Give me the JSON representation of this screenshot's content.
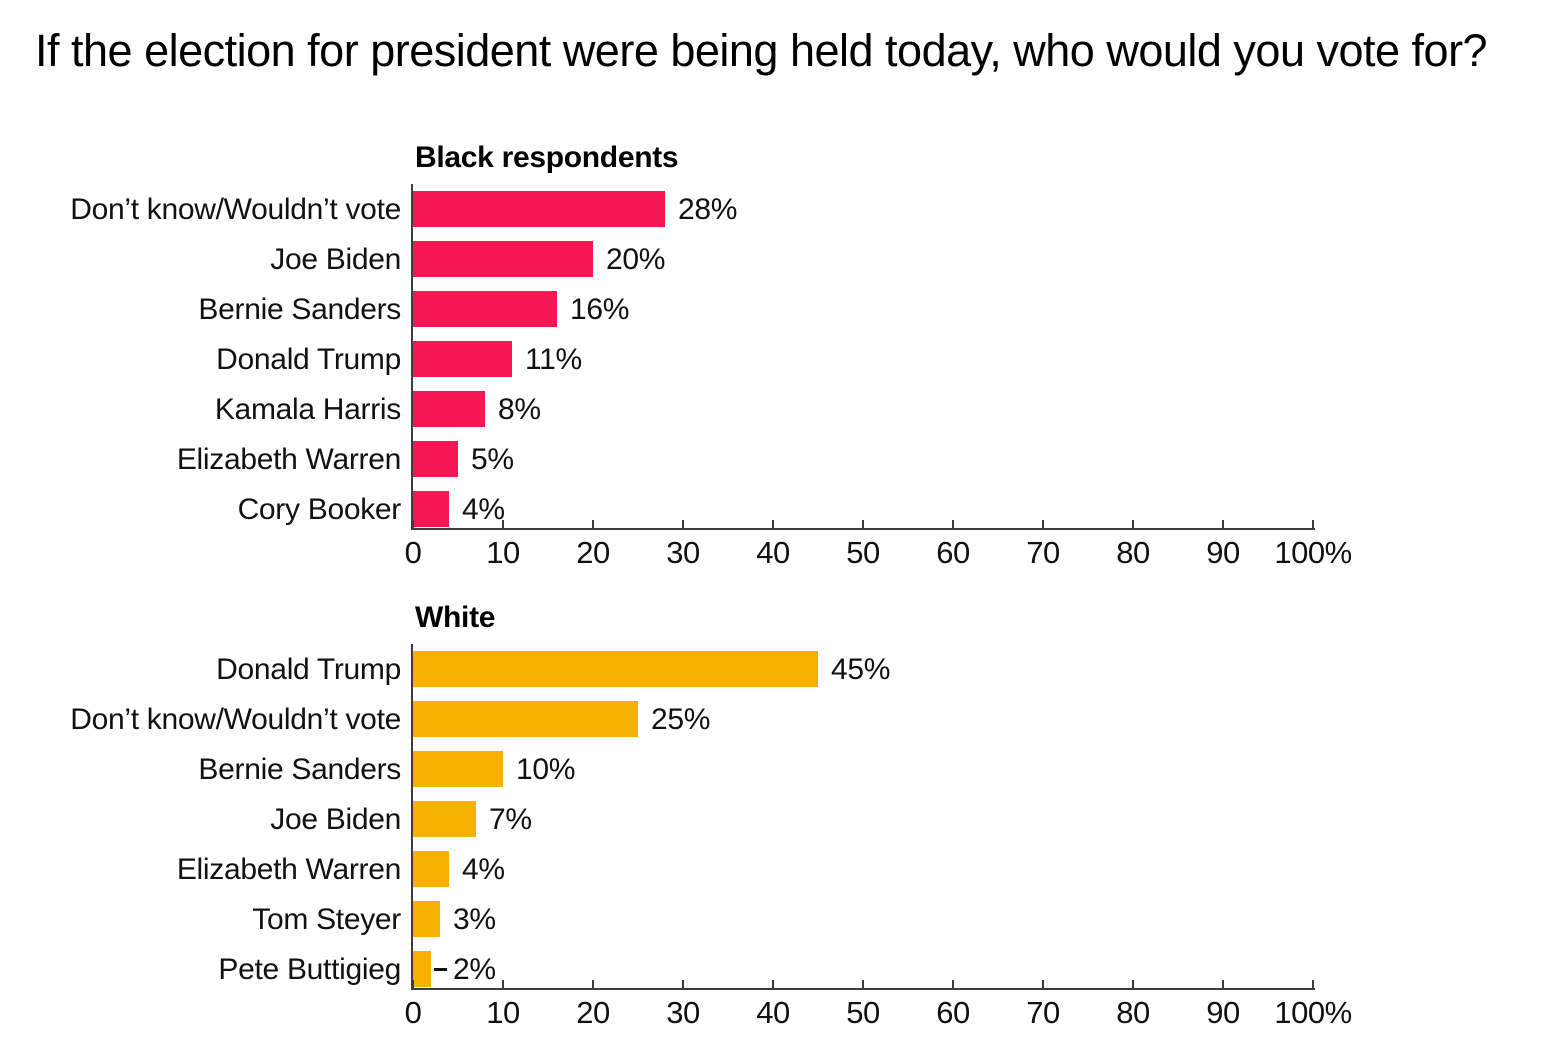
{
  "title": {
    "text": "If the election for president were being held today, who would you vote for?"
  },
  "colors": {
    "black_respondents_bar": "#F81754",
    "white_bar": "#F4B100",
    "axis": "#3d3d3d",
    "text": "#111111"
  },
  "chart_data": [
    {
      "type": "bar",
      "orientation": "horizontal",
      "title": "Black respondents",
      "bar_color": "#F81754",
      "categories": [
        "Don’t know/Wouldn’t vote",
        "Joe Biden",
        "Bernie Sanders",
        "Donald Trump",
        "Kamala Harris",
        "Elizabeth Warren",
        "Cory Booker"
      ],
      "values": [
        28,
        20,
        16,
        11,
        8,
        5,
        4
      ],
      "value_labels": [
        "28%",
        "20%",
        "16%",
        "11%",
        "8%",
        "5%",
        "4%"
      ],
      "xlabel": "",
      "ylabel": "",
      "xlim": [
        0,
        100
      ],
      "x_ticks": [
        0,
        10,
        20,
        30,
        40,
        50,
        60,
        70,
        80,
        90,
        100
      ],
      "x_tick_labels": [
        "0",
        "10",
        "20",
        "30",
        "40",
        "50",
        "60",
        "70",
        "80",
        "90",
        "100%"
      ],
      "grid": false,
      "legend": false
    },
    {
      "type": "bar",
      "orientation": "horizontal",
      "title": "White",
      "bar_color": "#F4B100",
      "categories": [
        "Donald Trump",
        "Don’t know/Wouldn’t vote",
        "Bernie Sanders",
        "Joe Biden",
        "Elizabeth Warren",
        "Tom Steyer",
        "Pete Buttigieg"
      ],
      "values": [
        45,
        25,
        10,
        7,
        4,
        3,
        2
      ],
      "value_labels": [
        "45%",
        "25%",
        "10%",
        "7%",
        "4%",
        "3%",
        "2%"
      ],
      "xlabel": "",
      "ylabel": "",
      "xlim": [
        0,
        100
      ],
      "x_ticks": [
        0,
        10,
        20,
        30,
        40,
        50,
        60,
        70,
        80,
        90,
        100
      ],
      "x_tick_labels": [
        "0",
        "10",
        "20",
        "30",
        "40",
        "50",
        "60",
        "70",
        "80",
        "90",
        "100%"
      ],
      "grid": false,
      "legend": false
    }
  ]
}
